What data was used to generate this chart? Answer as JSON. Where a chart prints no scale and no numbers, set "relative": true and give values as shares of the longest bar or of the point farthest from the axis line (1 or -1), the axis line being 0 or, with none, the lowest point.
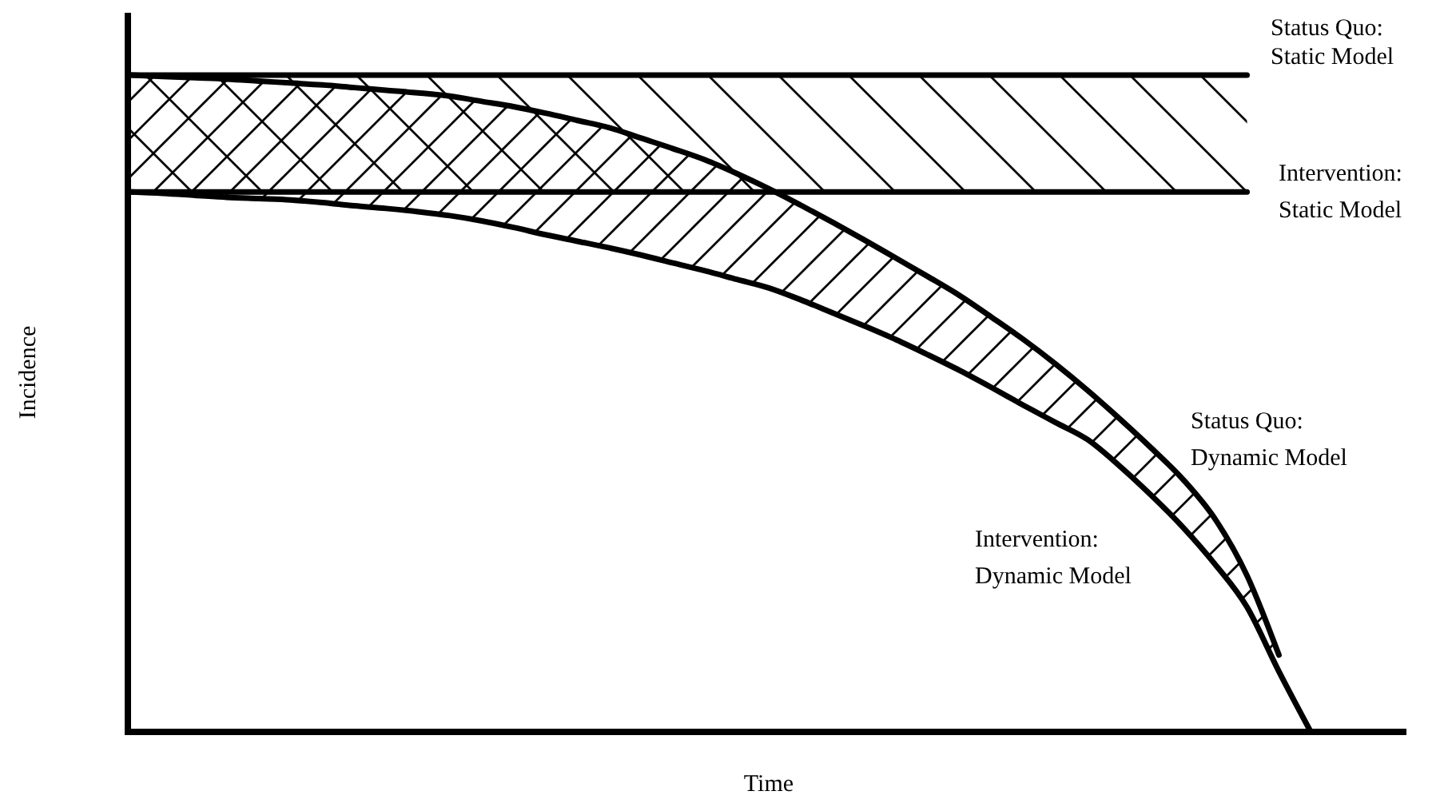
{
  "chart_data": {
    "type": "line",
    "relative": true,
    "xlabel": "Time",
    "ylabel": "Incidence",
    "legend": false,
    "marker": "none",
    "line_style": "solid",
    "categories": [
      null,
      null,
      null,
      null,
      null,
      null,
      null,
      null,
      null,
      null,
      null,
      null,
      null,
      null,
      null,
      null,
      null,
      null,
      null,
      null,
      null,
      null,
      null,
      null,
      null,
      null,
      null,
      null,
      null,
      null,
      null,
      null,
      null,
      null,
      null,
      null,
      null,
      null,
      null,
      null,
      null
    ],
    "series": [
      {
        "name": "Status Quo: Static Model",
        "color": "#000000",
        "values": [
          1,
          1,
          1,
          1,
          1,
          1,
          1,
          1,
          1,
          1,
          1,
          1,
          1,
          1,
          1,
          1,
          1,
          1,
          1,
          1,
          1,
          1,
          1,
          1,
          1,
          1,
          1,
          1,
          1,
          1,
          1,
          1,
          1,
          1,
          1,
          1,
          null,
          null,
          null,
          null,
          null
        ],
        "upper": [
          1,
          1,
          1,
          1,
          1,
          1,
          1,
          1,
          1,
          1,
          1,
          1,
          1,
          1,
          1,
          1,
          1,
          1,
          1,
          1,
          1,
          1,
          1,
          1,
          1,
          1,
          1,
          1,
          1,
          1,
          1,
          1,
          1,
          1,
          1,
          1,
          null,
          null,
          null,
          null,
          null
        ],
        "lower": [
          0.822,
          0.822,
          0.822,
          0.822,
          0.822,
          0.822,
          0.822,
          0.822,
          0.822,
          0.822,
          0.822,
          0.822,
          0.822,
          0.822,
          0.822,
          0.822,
          0.822,
          0.822,
          0.822,
          0.822,
          0.822,
          0.822,
          0.822,
          0.822,
          0.822,
          0.822,
          0.822,
          0.822,
          0.822,
          0.822,
          0.822,
          0.822,
          0.822,
          0.822,
          0.822,
          0.822,
          null,
          null,
          null,
          null,
          null
        ]
      },
      {
        "name": "Intervention: Static Model",
        "color": "#000000",
        "values": [
          0.822,
          0.822,
          0.822,
          0.822,
          0.822,
          0.822,
          0.822,
          0.822,
          0.822,
          0.822,
          0.822,
          0.822,
          0.822,
          0.822,
          0.822,
          0.822,
          0.822,
          0.822,
          0.822,
          0.822,
          0.822,
          0.822,
          0.822,
          0.822,
          0.822,
          0.822,
          0.822,
          0.822,
          0.822,
          0.822,
          0.822,
          0.822,
          0.822,
          0.822,
          0.822,
          0.822,
          null,
          null,
          null,
          null,
          null
        ]
      },
      {
        "name": "Status Quo: Dynamic Model",
        "color": "#000000",
        "values": [
          1,
          0.998,
          0.996,
          0.994,
          0.991,
          0.988,
          0.985,
          0.981,
          0.977,
          0.973,
          0.968,
          0.96,
          0.952,
          0.942,
          0.931,
          0.92,
          0.904,
          0.888,
          0.871,
          0.85,
          0.827,
          0.802,
          0.776,
          0.749,
          0.721,
          0.693,
          0.664,
          0.631,
          0.597,
          0.56,
          0.52,
          0.477,
          0.432,
          0.384,
          0.324,
          0.238,
          0.117,
          null,
          null,
          null,
          null
        ],
        "upper": [
          1,
          0.998,
          0.996,
          0.994,
          0.991,
          0.988,
          0.985,
          0.981,
          0.977,
          0.973,
          0.968,
          0.96,
          0.952,
          0.942,
          0.931,
          0.92,
          0.904,
          0.888,
          0.871,
          0.85,
          0.827,
          0.802,
          0.776,
          0.749,
          0.721,
          0.693,
          0.664,
          0.631,
          0.597,
          0.56,
          0.52,
          0.477,
          0.432,
          0.384,
          0.324,
          0.238,
          0.117,
          null,
          null,
          null,
          null
        ],
        "lower": [
          0.822,
          0.82,
          0.817,
          0.814,
          0.812,
          0.81,
          0.806,
          0.801,
          0.797,
          0.792,
          0.786,
          0.778,
          0.768,
          0.757,
          0.747,
          0.737,
          0.726,
          0.714,
          0.702,
          0.689,
          0.676,
          0.658,
          0.638,
          0.618,
          0.597,
          0.574,
          0.55,
          0.524,
          0.497,
          0.471,
          0.445,
          0.405,
          0.36,
          0.311,
          0.255,
          0.19,
          0.092,
          null,
          null,
          null,
          null
        ]
      },
      {
        "name": "Intervention: Dynamic Model",
        "color": "#000000",
        "values": [
          0.822,
          0.82,
          0.817,
          0.814,
          0.812,
          0.81,
          0.806,
          0.801,
          0.797,
          0.792,
          0.786,
          0.778,
          0.768,
          0.757,
          0.747,
          0.737,
          0.726,
          0.714,
          0.702,
          0.689,
          0.676,
          0.658,
          0.638,
          0.618,
          0.597,
          0.574,
          0.55,
          0.524,
          0.497,
          0.471,
          0.445,
          0.405,
          0.36,
          0.311,
          0.255,
          0.19,
          0.092,
          0,
          null,
          null,
          null
        ]
      }
    ]
  }
}
